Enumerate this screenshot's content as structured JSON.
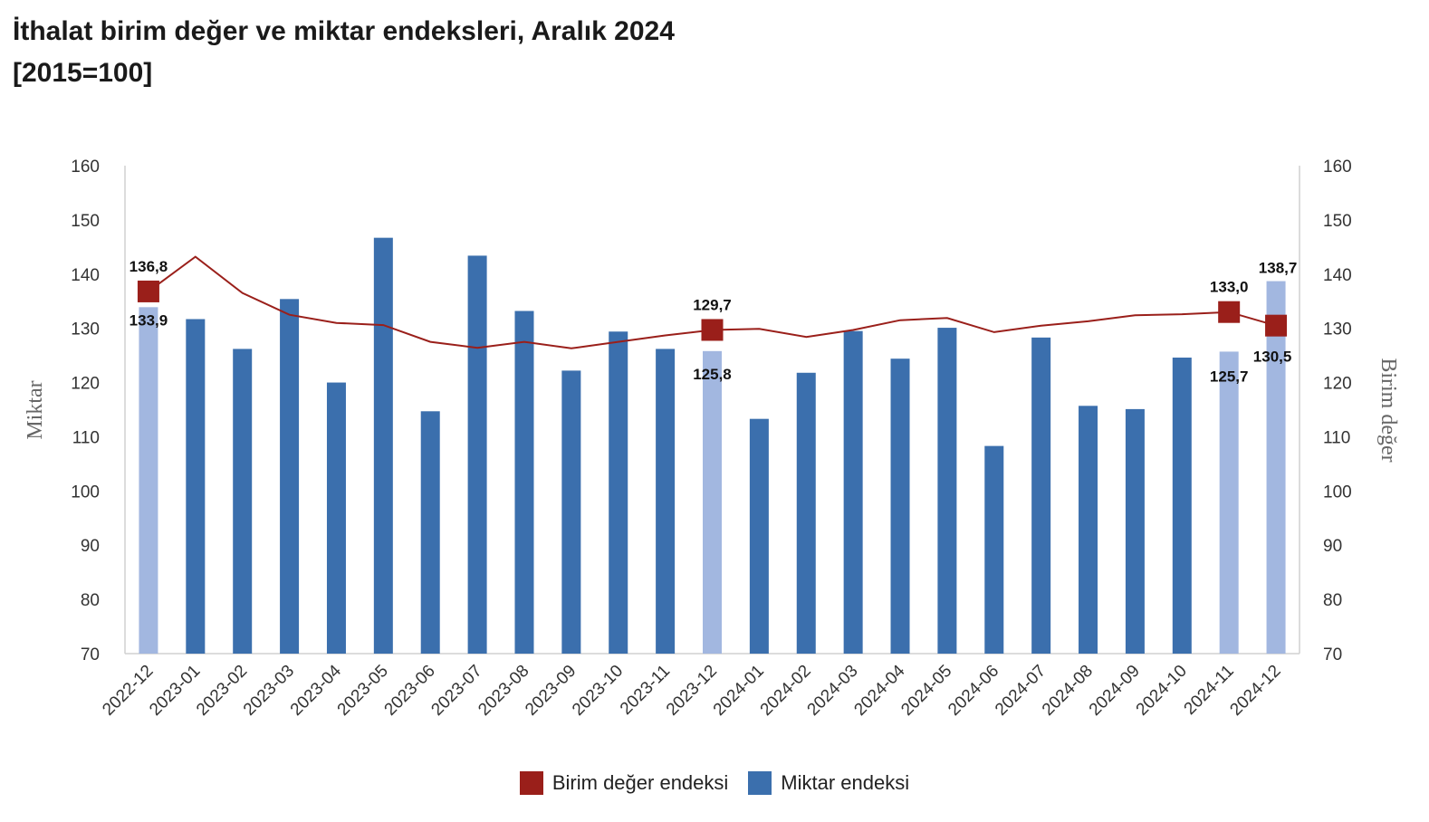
{
  "title": {
    "line1": "İthalat birim değer ve miktar endeksleri, Aralık 2024",
    "line2": "[2015=100]"
  },
  "colors": {
    "bar": "#3b6fad",
    "bar_highlight": "#a2b7e0",
    "line": "#9a1f1a",
    "marker": "#9a1f1a",
    "axis": "#d0d0d0"
  },
  "chart_data": {
    "type": "bar",
    "title": "İthalat birim değer ve miktar endeksleri, Aralık 2024",
    "subtitle": "[2015=100]",
    "ylabel": "Miktar",
    "y2label": "Birim değer",
    "ylim": [
      70,
      160
    ],
    "y2lim": [
      70,
      160
    ],
    "yticks": [
      70,
      80,
      90,
      100,
      110,
      120,
      130,
      140,
      150,
      160
    ],
    "grid": false,
    "legend_position": "bottom",
    "categories": [
      "2022-12",
      "2023-01",
      "2023-02",
      "2023-03",
      "2023-04",
      "2023-05",
      "2023-06",
      "2023-07",
      "2023-08",
      "2023-09",
      "2023-10",
      "2023-11",
      "2023-12",
      "2024-01",
      "2024-02",
      "2024-03",
      "2024-04",
      "2024-05",
      "2024-06",
      "2024-07",
      "2024-08",
      "2024-09",
      "2024-10",
      "2024-11",
      "2024-12"
    ],
    "highlighted_categories": [
      "2022-12",
      "2023-12",
      "2024-11",
      "2024-12"
    ],
    "series": [
      {
        "name": "Birim değer endeksi",
        "type": "line",
        "axis": "right",
        "values": [
          136.8,
          143.2,
          136.5,
          132.5,
          131.0,
          130.6,
          127.5,
          126.4,
          127.5,
          126.3,
          127.5,
          128.7,
          129.7,
          129.9,
          128.4,
          129.7,
          131.5,
          131.9,
          129.3,
          130.5,
          131.3,
          132.4,
          132.6,
          133.0,
          130.5
        ],
        "labels": [
          {
            "index": 0,
            "text": "136,8"
          },
          {
            "index": 12,
            "text": "129,7"
          },
          {
            "index": 23,
            "text": "133,0"
          },
          {
            "index": 24,
            "text": "130,5"
          }
        ]
      },
      {
        "name": "Miktar endeksi",
        "type": "bar",
        "axis": "left",
        "values": [
          133.9,
          131.7,
          126.2,
          135.4,
          120.0,
          146.7,
          114.7,
          143.4,
          133.2,
          122.2,
          129.4,
          126.2,
          125.8,
          113.3,
          121.8,
          129.5,
          124.4,
          130.1,
          108.3,
          128.3,
          115.7,
          115.1,
          124.6,
          125.7,
          138.7
        ],
        "labels": [
          {
            "index": 0,
            "text": "133,9"
          },
          {
            "index": 12,
            "text": "125,8"
          },
          {
            "index": 23,
            "text": "125,7"
          },
          {
            "index": 24,
            "text": "138,7"
          }
        ]
      }
    ]
  }
}
